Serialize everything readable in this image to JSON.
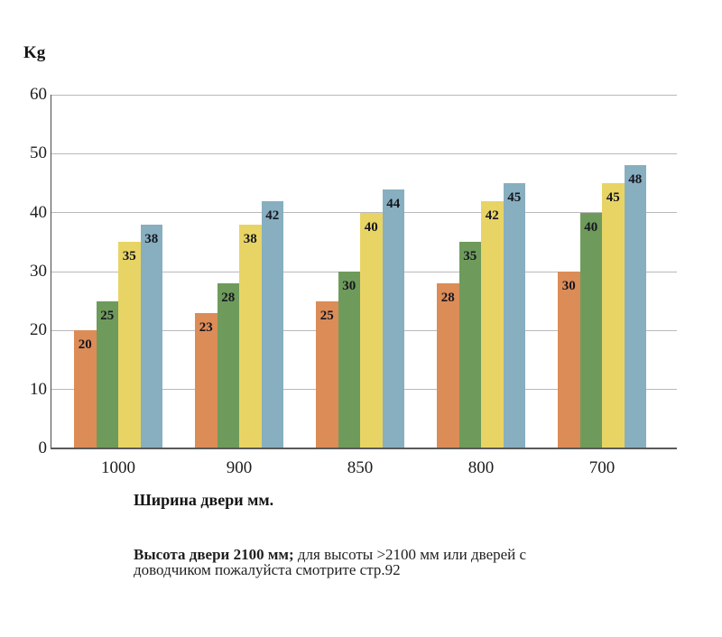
{
  "chart_data": {
    "type": "bar",
    "title": "",
    "ylabel": "Kg",
    "xlabel": "Ширина двери мм.",
    "categories": [
      "1000",
      "900",
      "850",
      "800",
      "700"
    ],
    "series": [
      {
        "name": "bar-orange",
        "color": "#DC8C57",
        "values": [
          20,
          23,
          25,
          28,
          30
        ]
      },
      {
        "name": "bar-green",
        "color": "#6E9B5B",
        "values": [
          25,
          28,
          30,
          35,
          40
        ]
      },
      {
        "name": "bar-yellow",
        "color": "#E8D465",
        "values": [
          35,
          38,
          40,
          42,
          45
        ]
      },
      {
        "name": "bar-blue",
        "color": "#87AFC0",
        "values": [
          38,
          42,
          44,
          45,
          48
        ]
      }
    ],
    "ylim": [
      0,
      60
    ],
    "yticks": [
      0,
      10,
      20,
      30,
      40,
      50,
      60
    ],
    "grid": true,
    "legend": false,
    "bar_value_labels": true
  },
  "note": {
    "bold": "Высота двери 2100 мм;",
    "line1": " для высоты >2100 мм или дверей с",
    "line2": "доводчиком пожалуйста смотрите стр.92"
  }
}
